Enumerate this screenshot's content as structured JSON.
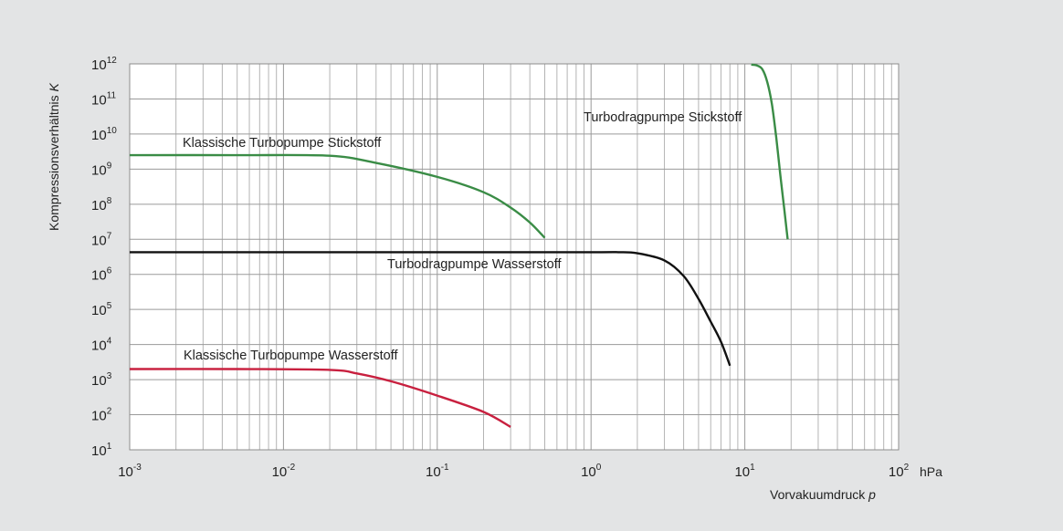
{
  "chart_data": {
    "type": "line",
    "xlabel": "Vorvakuumdruck",
    "xlabel_var": "p",
    "x_unit": "hPa",
    "ylabel": "Kompressionsverhältnis",
    "ylabel_var": "K",
    "x_scale": "log",
    "y_scale": "log",
    "xlim": [
      0.001,
      100
    ],
    "ylim": [
      10,
      1000000000000
    ],
    "x_ticks": [
      {
        "base": "10",
        "exp": "-3"
      },
      {
        "base": "10",
        "exp": "-2"
      },
      {
        "base": "10",
        "exp": "-1"
      },
      {
        "base": "10",
        "exp": "0"
      },
      {
        "base": "10",
        "exp": "1"
      },
      {
        "base": "10",
        "exp": "2"
      }
    ],
    "y_ticks": [
      {
        "base": "10",
        "exp": "1"
      },
      {
        "base": "10",
        "exp": "2"
      },
      {
        "base": "10",
        "exp": "3"
      },
      {
        "base": "10",
        "exp": "4"
      },
      {
        "base": "10",
        "exp": "5"
      },
      {
        "base": "10",
        "exp": "6"
      },
      {
        "base": "10",
        "exp": "7"
      },
      {
        "base": "10",
        "exp": "8"
      },
      {
        "base": "10",
        "exp": "9"
      },
      {
        "base": "10",
        "exp": "10"
      },
      {
        "base": "10",
        "exp": "11"
      },
      {
        "base": "10",
        "exp": "12"
      }
    ],
    "grid": true,
    "series": [
      {
        "name": "Klassische Turbopumpe Stickstoff",
        "color": "#3a8c46",
        "x": [
          0.001,
          0.005,
          0.02,
          0.04,
          0.1,
          0.2,
          0.3,
          0.4,
          0.5
        ],
        "y": [
          2500000000,
          2500000000,
          2400000000,
          1500000000,
          600000000,
          220000000,
          80000000,
          30000000,
          11000000
        ]
      },
      {
        "name": "Turbodragpumpe Wasserstoff",
        "color": "#111111",
        "x": [
          0.001,
          0.01,
          0.1,
          1,
          1.5,
          2,
          3,
          4,
          5,
          6,
          7,
          8
        ],
        "y": [
          4300000,
          4300000,
          4300000,
          4300000,
          4300000,
          4000000,
          2500000,
          900000,
          200000,
          45000,
          12000,
          2500
        ]
      },
      {
        "name": "Klassische Turbopumpe Wasserstoff",
        "color": "#c8203f",
        "x": [
          0.001,
          0.005,
          0.02,
          0.03,
          0.05,
          0.1,
          0.2,
          0.3
        ],
        "y": [
          2000,
          2000,
          1900,
          1500,
          900,
          350,
          120,
          45
        ]
      },
      {
        "name": "Turbodragpumpe Stickstoff",
        "color": "#3a8c46",
        "x": [
          11,
          12,
          13,
          14,
          15,
          16,
          17,
          18,
          19
        ],
        "y": [
          950000000000,
          900000000000,
          700000000000,
          300000000000,
          70000000000,
          8000000000,
          700000000,
          80000000,
          10000000
        ]
      }
    ]
  }
}
